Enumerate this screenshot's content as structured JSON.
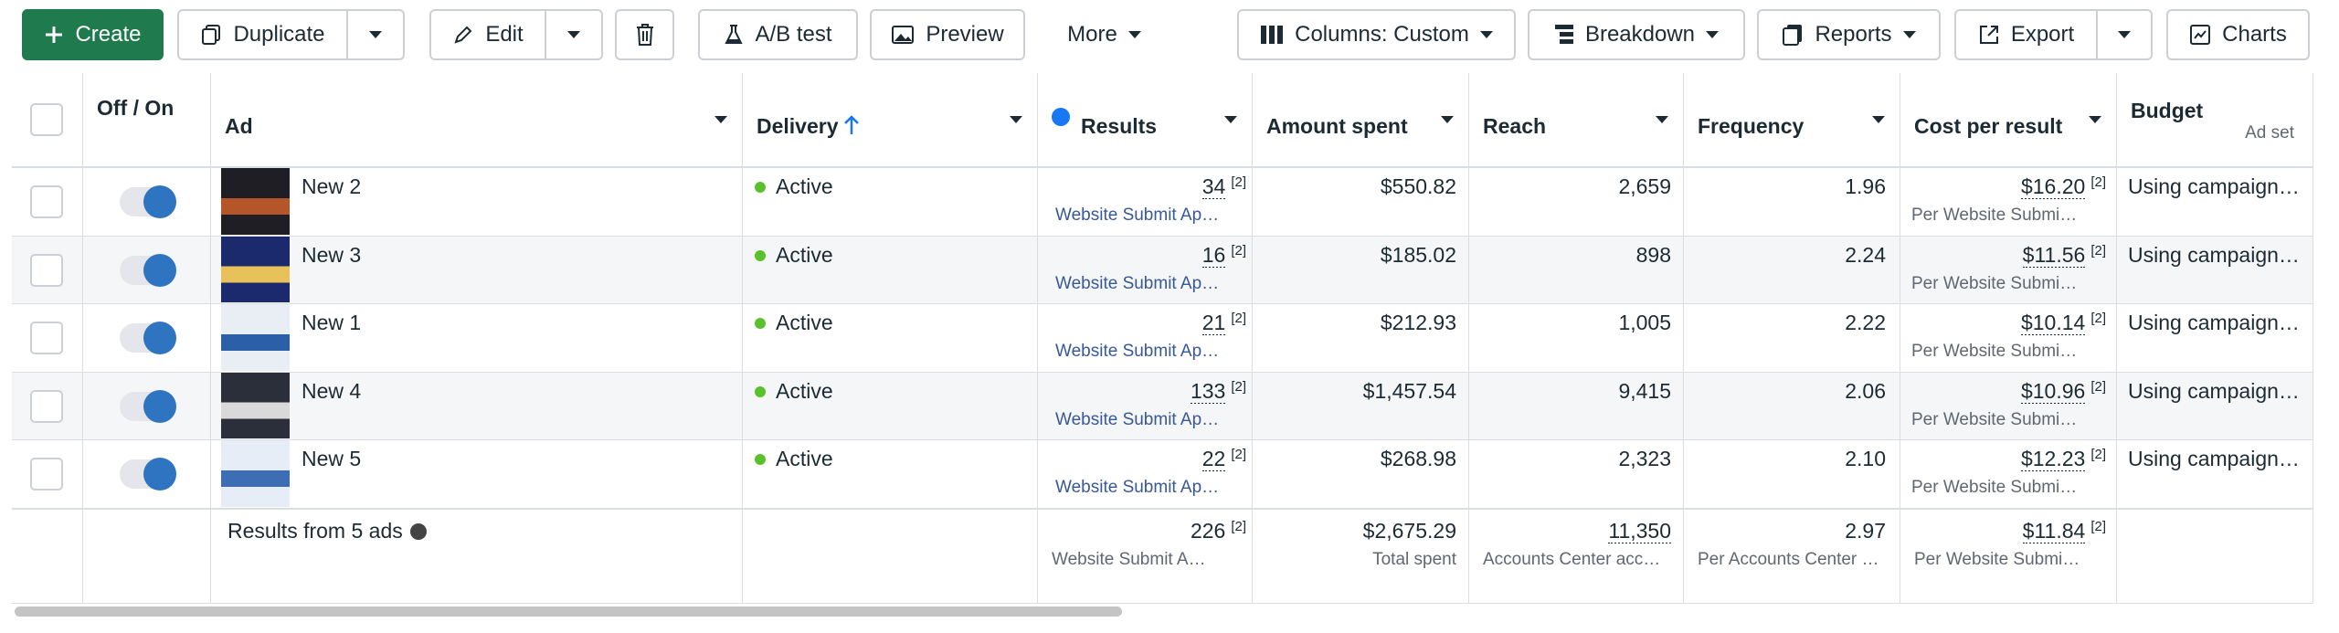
{
  "toolbar": {
    "create": "Create",
    "duplicate": "Duplicate",
    "edit": "Edit",
    "ab_test": "A/B test",
    "preview": "Preview",
    "more": "More",
    "columns": "Columns: Custom",
    "breakdown": "Breakdown",
    "reports": "Reports",
    "export": "Export",
    "charts": "Charts"
  },
  "table": {
    "headers": [
      "Off / On",
      "Ad",
      "Delivery",
      "Results",
      "Amount spent",
      "Reach",
      "Frequency",
      "Cost per result",
      "Budget"
    ],
    "budget_subheader": "Ad set",
    "rows": [
      {
        "ad": "New 2",
        "delivery": "Active",
        "results": "34",
        "results_note": "[2]",
        "results_type": "Website Submit Ap…",
        "amount_spent": "$550.82",
        "reach": "2,659",
        "frequency": "1.96",
        "cost_per_result": "$16.20",
        "cost_note": "[2]",
        "cost_type": "Per Website Submi…",
        "budget": "Using campaign…"
      },
      {
        "ad": "New 3",
        "delivery": "Active",
        "results": "16",
        "results_note": "[2]",
        "results_type": "Website Submit Ap…",
        "amount_spent": "$185.02",
        "reach": "898",
        "frequency": "2.24",
        "cost_per_result": "$11.56",
        "cost_note": "[2]",
        "cost_type": "Per Website Submi…",
        "budget": "Using campaign…"
      },
      {
        "ad": "New 1",
        "delivery": "Active",
        "results": "21",
        "results_note": "[2]",
        "results_type": "Website Submit Ap…",
        "amount_spent": "$212.93",
        "reach": "1,005",
        "frequency": "2.22",
        "cost_per_result": "$10.14",
        "cost_note": "[2]",
        "cost_type": "Per Website Submi…",
        "budget": "Using campaign…"
      },
      {
        "ad": "New 4",
        "delivery": "Active",
        "results": "133",
        "results_note": "[2]",
        "results_type": "Website Submit Ap…",
        "amount_spent": "$1,457.54",
        "reach": "9,415",
        "frequency": "2.06",
        "cost_per_result": "$10.96",
        "cost_note": "[2]",
        "cost_type": "Per Website Submi…",
        "budget": "Using campaign…"
      },
      {
        "ad": "New 5",
        "delivery": "Active",
        "results": "22",
        "results_note": "[2]",
        "results_type": "Website Submit Ap…",
        "amount_spent": "$268.98",
        "reach": "2,323",
        "frequency": "2.10",
        "cost_per_result": "$12.23",
        "cost_note": "[2]",
        "cost_type": "Per Website Submi…",
        "budget": "Using campaign…"
      }
    ],
    "summary": {
      "label": "Results from 5 ads",
      "results": "226",
      "results_note": "[2]",
      "results_type": "Website Submit A…",
      "amount_spent": "$2,675.29",
      "amount_note": "Total spent",
      "reach": "11,350",
      "reach_type": "Accounts Center acc…",
      "frequency": "2.97",
      "frequency_type": "Per Accounts Center …",
      "cost_per_result": "$11.84",
      "cost_note": "[2]",
      "cost_type": "Per Website Submi…"
    }
  }
}
